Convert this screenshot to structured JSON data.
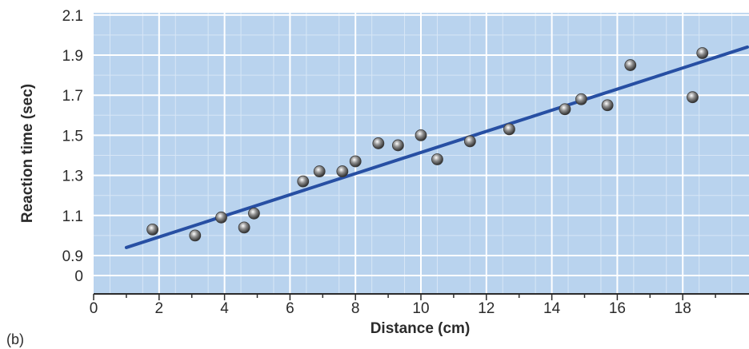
{
  "panel_label": "(b)",
  "colors": {
    "plot_background": "#b9d3ee",
    "grid_major": "#ffffff",
    "grid_minor": "#d7e6f6",
    "fit_line": "#274fa3",
    "point": "#8e8e8e",
    "axis": "#2b2b2b"
  },
  "chart_data": {
    "type": "scatter",
    "title": "",
    "xlabel": "Distance (cm)",
    "ylabel": "Reaction time (sec)",
    "xlim": [
      0,
      20
    ],
    "x_ticks": [
      "0",
      "2",
      "4",
      "6",
      "8",
      "10",
      "12",
      "14",
      "16",
      "18"
    ],
    "y_ticks": [
      "0",
      "0.9",
      "1.1",
      "1.3",
      "1.5",
      "1.7",
      "1.9",
      "2.1"
    ],
    "y_axis_break": "axis starts at 0, then jumps to 0.9",
    "grid": true,
    "points": [
      {
        "x": 1.8,
        "y": 1.03
      },
      {
        "x": 3.1,
        "y": 1.0
      },
      {
        "x": 3.9,
        "y": 1.09
      },
      {
        "x": 4.6,
        "y": 1.04
      },
      {
        "x": 4.9,
        "y": 1.11
      },
      {
        "x": 6.4,
        "y": 1.27
      },
      {
        "x": 6.9,
        "y": 1.32
      },
      {
        "x": 7.6,
        "y": 1.32
      },
      {
        "x": 8.0,
        "y": 1.37
      },
      {
        "x": 8.7,
        "y": 1.46
      },
      {
        "x": 9.3,
        "y": 1.45
      },
      {
        "x": 10.0,
        "y": 1.5
      },
      {
        "x": 10.5,
        "y": 1.38
      },
      {
        "x": 11.5,
        "y": 1.47
      },
      {
        "x": 12.7,
        "y": 1.53
      },
      {
        "x": 14.4,
        "y": 1.63
      },
      {
        "x": 14.9,
        "y": 1.68
      },
      {
        "x": 15.7,
        "y": 1.65
      },
      {
        "x": 16.4,
        "y": 1.85
      },
      {
        "x": 18.3,
        "y": 1.69
      },
      {
        "x": 18.6,
        "y": 1.91
      }
    ],
    "fit_line": {
      "x": [
        1.0,
        20.0
      ],
      "y": [
        0.94,
        1.94
      ]
    }
  }
}
